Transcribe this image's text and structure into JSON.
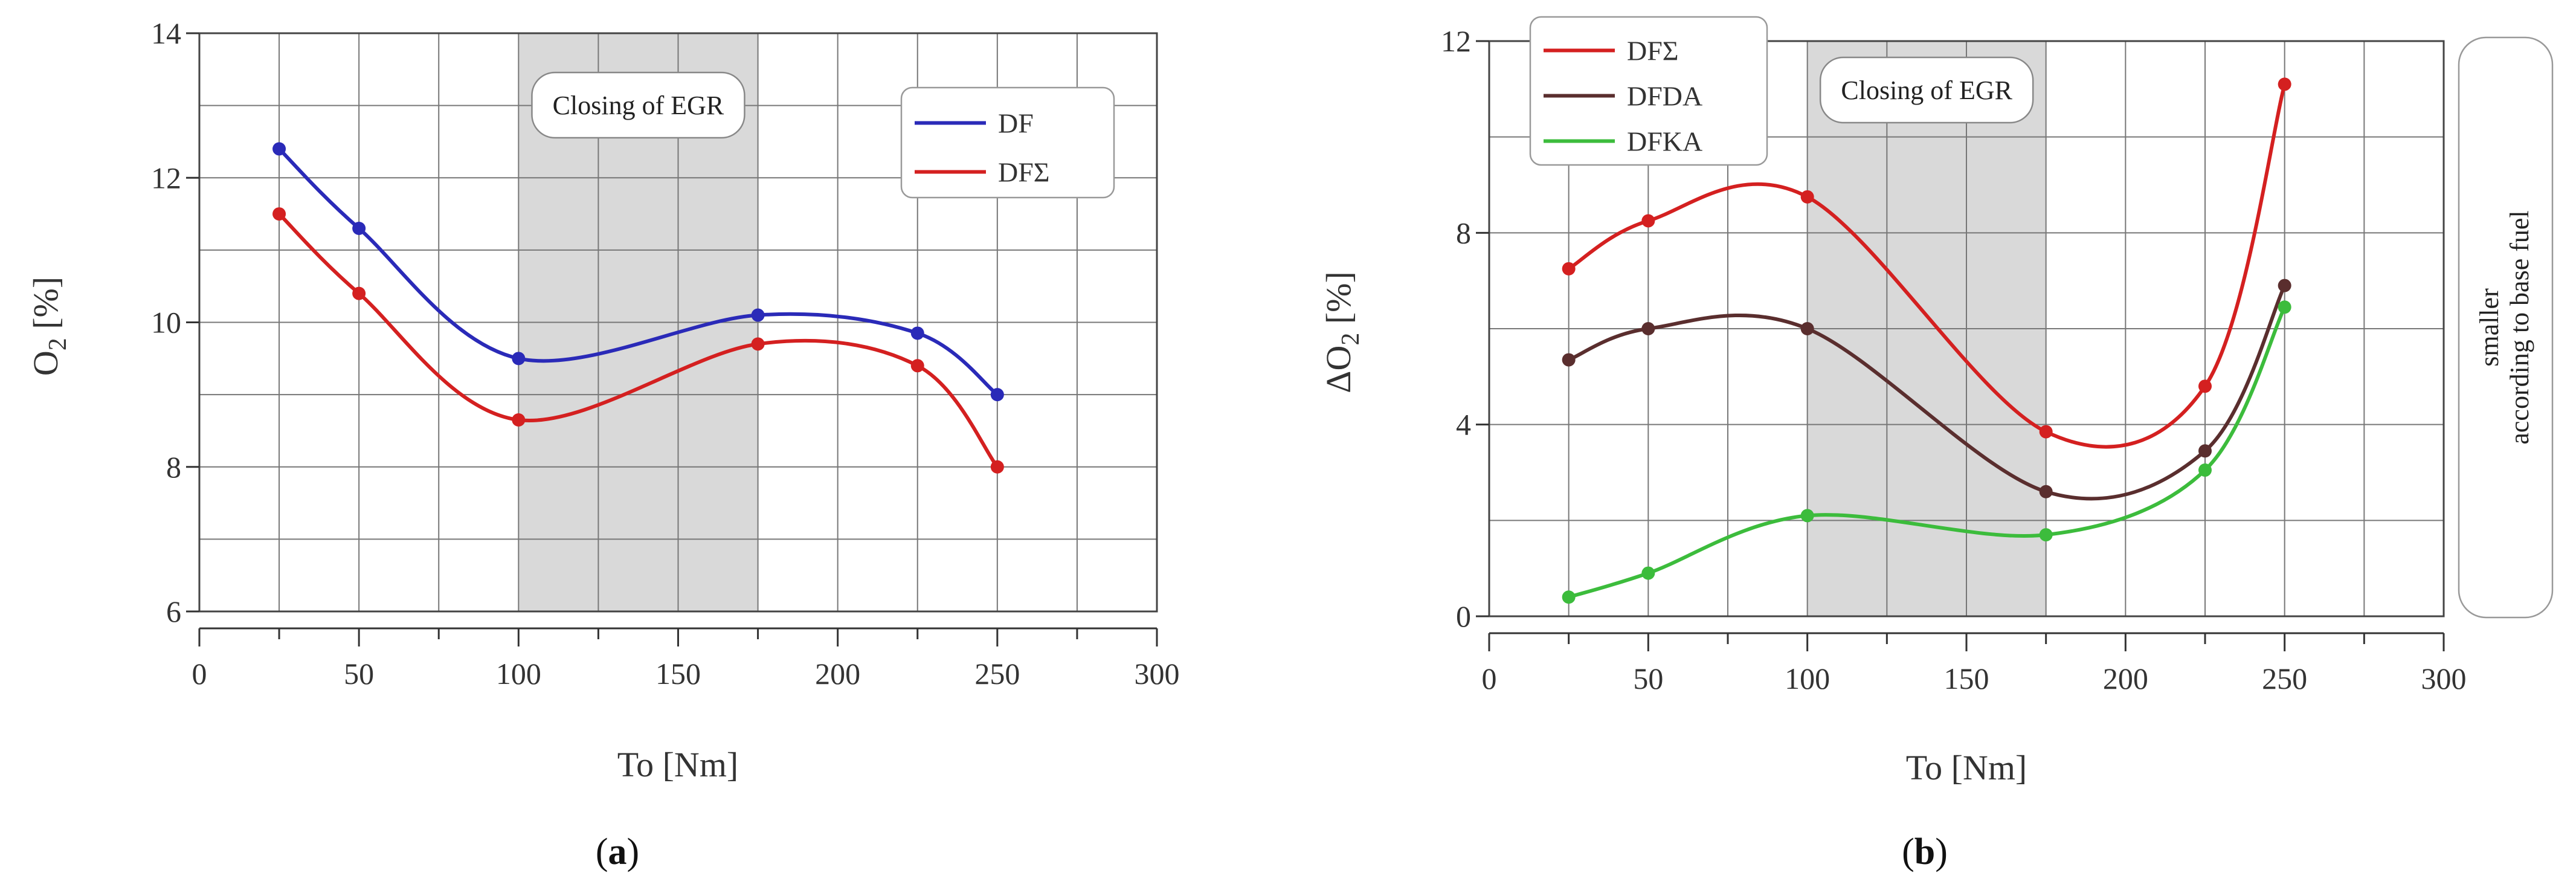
{
  "chart_data": [
    {
      "panel": "(a)",
      "type": "line",
      "xlabel": "To [Nm]",
      "ylabel": "O2 [%]",
      "xlim": [
        0,
        300
      ],
      "ylim": [
        6,
        14
      ],
      "xticks": [
        "0",
        "50",
        "100",
        "150",
        "200",
        "250",
        "300"
      ],
      "yticks": [
        "6",
        "8",
        "10",
        "12",
        "14"
      ],
      "highlight": {
        "from": 100,
        "to": 175,
        "label": "Closing of EGR"
      },
      "legend": "top-right",
      "series": [
        {
          "name": "DF",
          "color": "#2a2ab8",
          "x": [
            25,
            50,
            100,
            175,
            225,
            250
          ],
          "y": [
            12.4,
            11.3,
            9.5,
            10.1,
            9.85,
            9.0
          ]
        },
        {
          "name": "DFΣ",
          "color": "#d42020",
          "x": [
            25,
            50,
            100,
            175,
            225,
            250
          ],
          "y": [
            11.5,
            10.4,
            8.65,
            9.7,
            9.4,
            8.0
          ]
        }
      ]
    },
    {
      "panel": "(b)",
      "type": "line",
      "xlabel": "To [Nm]",
      "ylabel": "ΔO2 [%]",
      "xlim": [
        0,
        300
      ],
      "ylim": [
        0,
        12
      ],
      "xticks": [
        "0",
        "50",
        "100",
        "150",
        "200",
        "250",
        "300"
      ],
      "yticks": [
        "0",
        "4",
        "8",
        "12"
      ],
      "highlight": {
        "from": 100,
        "to": 175,
        "label": "Closing of EGR"
      },
      "legend": "top-left",
      "side_note": [
        "smaller",
        "according to base fuel"
      ],
      "series": [
        {
          "name": "DFΣ",
          "color": "#d42020",
          "x": [
            25,
            50,
            100,
            175,
            225,
            250
          ],
          "y": [
            7.25,
            8.25,
            8.75,
            3.85,
            4.8,
            11.1
          ]
        },
        {
          "name": "DFDA",
          "color": "#5a2e2e",
          "x": [
            25,
            50,
            100,
            175,
            225,
            250
          ],
          "y": [
            5.35,
            6.0,
            6.0,
            2.6,
            3.45,
            6.9
          ]
        },
        {
          "name": "DFKA",
          "color": "#3cbc3c",
          "x": [
            25,
            50,
            100,
            175,
            225,
            250
          ],
          "y": [
            0.4,
            0.9,
            2.1,
            1.7,
            3.05,
            6.45
          ]
        }
      ]
    }
  ]
}
